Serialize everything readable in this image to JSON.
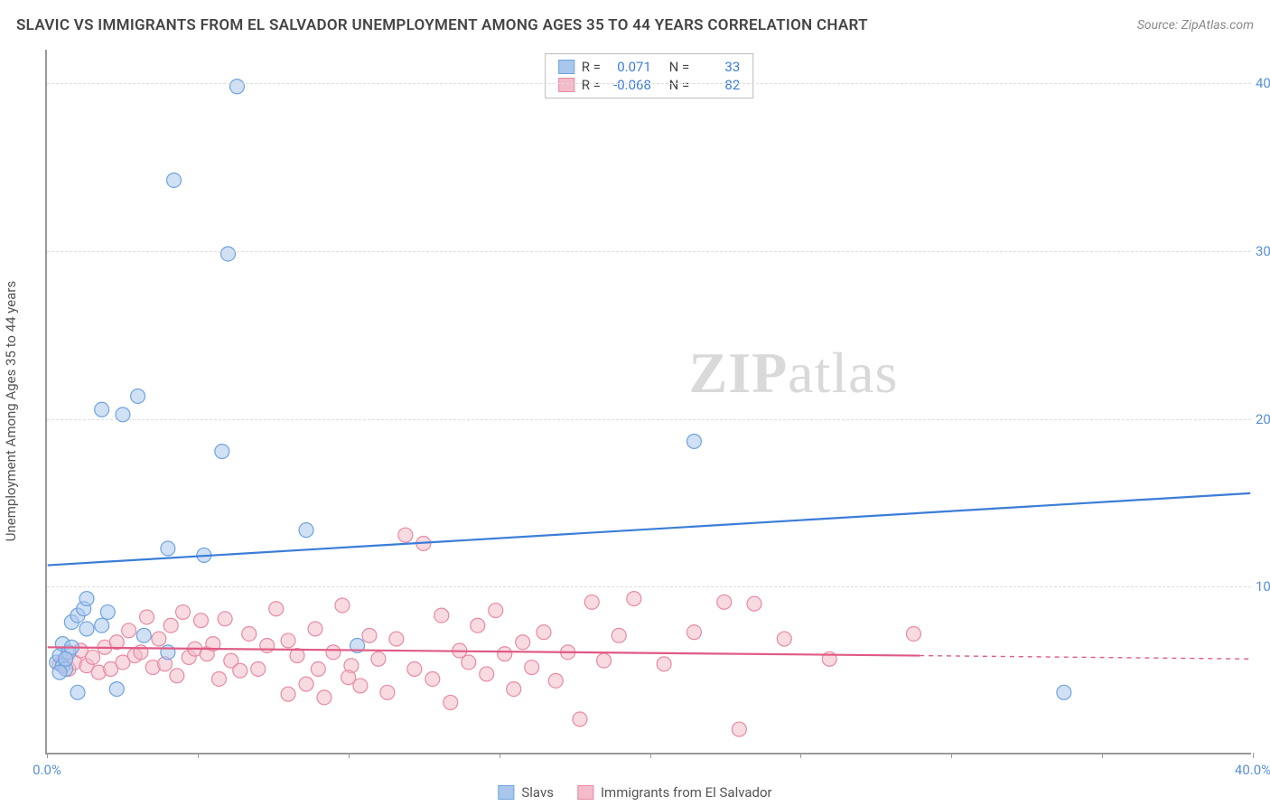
{
  "title": "SLAVIC VS IMMIGRANTS FROM EL SALVADOR UNEMPLOYMENT AMONG AGES 35 TO 44 YEARS CORRELATION CHART",
  "source": "Source: ZipAtlas.com",
  "y_axis_label": "Unemployment Among Ages 35 to 44 years",
  "watermark_bold": "ZIP",
  "watermark_rest": "atlas",
  "chart": {
    "type": "scatter",
    "xlim": [
      0,
      40
    ],
    "ylim": [
      0,
      42
    ],
    "x_ticks": [
      0,
      5,
      10,
      15,
      20,
      25,
      30,
      35,
      40
    ],
    "x_tick_labels": {
      "0": "0.0%",
      "40": "40.0%"
    },
    "y_ticks": [
      10,
      20,
      30,
      40
    ],
    "y_tick_labels": [
      "10.0%",
      "20.0%",
      "30.0%",
      "40.0%"
    ],
    "grid_color": "#dddddd",
    "axis_color": "#999999",
    "background_color": "#ffffff",
    "tick_label_color": "#5b8fd6",
    "marker_radius": 8,
    "marker_opacity": 0.55,
    "series": [
      {
        "name": "Slavs",
        "color_fill": "#a9c7ec",
        "color_stroke": "#6fa3dd",
        "R": "0.071",
        "N": "33",
        "trend": {
          "x1": 0,
          "y1": 11.2,
          "x2": 40,
          "y2": 15.5,
          "color": "#3b7dd8",
          "width": 2.2
        },
        "points": [
          [
            0.3,
            5.4
          ],
          [
            0.4,
            5.8
          ],
          [
            0.5,
            5.2
          ],
          [
            0.5,
            6.5
          ],
          [
            0.6,
            5.0
          ],
          [
            0.7,
            6.0
          ],
          [
            0.8,
            6.3
          ],
          [
            0.8,
            7.8
          ],
          [
            1.0,
            8.2
          ],
          [
            1.2,
            8.6
          ],
          [
            1.3,
            7.4
          ],
          [
            1.3,
            9.2
          ],
          [
            1.8,
            7.6
          ],
          [
            2.0,
            8.4
          ],
          [
            1.0,
            3.6
          ],
          [
            2.3,
            3.8
          ],
          [
            3.2,
            7.0
          ],
          [
            4.0,
            6.0
          ],
          [
            4.0,
            12.2
          ],
          [
            5.2,
            11.8
          ],
          [
            5.8,
            18.0
          ],
          [
            1.8,
            20.5
          ],
          [
            3.0,
            21.3
          ],
          [
            2.5,
            20.2
          ],
          [
            6.0,
            29.8
          ],
          [
            4.2,
            34.2
          ],
          [
            6.3,
            39.8
          ],
          [
            8.6,
            13.3
          ],
          [
            10.3,
            6.4
          ],
          [
            21.5,
            18.6
          ],
          [
            33.8,
            3.6
          ],
          [
            0.4,
            4.8
          ],
          [
            0.6,
            5.6
          ]
        ]
      },
      {
        "name": "Immigrants from El Salvador",
        "color_fill": "#f3bcc8",
        "color_stroke": "#e78aa2",
        "R": "-0.068",
        "N": "82",
        "trend": {
          "x1": 0,
          "y1": 6.3,
          "x2": 29,
          "y2": 5.8,
          "color": "#e05a84",
          "width": 2.2,
          "dash_after_x": 29,
          "x2_dash": 40,
          "y2_dash": 5.6
        },
        "points": [
          [
            0.4,
            5.3
          ],
          [
            0.6,
            5.6
          ],
          [
            0.7,
            5.0
          ],
          [
            0.9,
            5.4
          ],
          [
            1.1,
            6.1
          ],
          [
            1.3,
            5.2
          ],
          [
            1.5,
            5.7
          ],
          [
            1.7,
            4.8
          ],
          [
            1.9,
            6.3
          ],
          [
            2.1,
            5.0
          ],
          [
            2.3,
            6.6
          ],
          [
            2.5,
            5.4
          ],
          [
            2.7,
            7.3
          ],
          [
            2.9,
            5.8
          ],
          [
            3.1,
            6.0
          ],
          [
            3.3,
            8.1
          ],
          [
            3.5,
            5.1
          ],
          [
            3.7,
            6.8
          ],
          [
            3.9,
            5.3
          ],
          [
            4.1,
            7.6
          ],
          [
            4.3,
            4.6
          ],
          [
            4.5,
            8.4
          ],
          [
            4.7,
            5.7
          ],
          [
            4.9,
            6.2
          ],
          [
            5.1,
            7.9
          ],
          [
            5.3,
            5.9
          ],
          [
            5.5,
            6.5
          ],
          [
            5.7,
            4.4
          ],
          [
            5.9,
            8.0
          ],
          [
            6.1,
            5.5
          ],
          [
            6.7,
            7.1
          ],
          [
            7.0,
            5.0
          ],
          [
            7.3,
            6.4
          ],
          [
            7.6,
            8.6
          ],
          [
            8.0,
            3.5
          ],
          [
            8.3,
            5.8
          ],
          [
            8.6,
            4.1
          ],
          [
            8.9,
            7.4
          ],
          [
            9.2,
            3.3
          ],
          [
            9.5,
            6.0
          ],
          [
            9.8,
            8.8
          ],
          [
            10.1,
            5.2
          ],
          [
            10.4,
            4.0
          ],
          [
            10.7,
            7.0
          ],
          [
            11.0,
            5.6
          ],
          [
            11.3,
            3.6
          ],
          [
            11.6,
            6.8
          ],
          [
            11.9,
            13.0
          ],
          [
            12.2,
            5.0
          ],
          [
            12.5,
            12.5
          ],
          [
            12.8,
            4.4
          ],
          [
            13.1,
            8.2
          ],
          [
            13.4,
            3.0
          ],
          [
            13.7,
            6.1
          ],
          [
            14.0,
            5.4
          ],
          [
            14.3,
            7.6
          ],
          [
            14.6,
            4.7
          ],
          [
            14.9,
            8.5
          ],
          [
            15.2,
            5.9
          ],
          [
            15.5,
            3.8
          ],
          [
            15.8,
            6.6
          ],
          [
            16.1,
            5.1
          ],
          [
            16.5,
            7.2
          ],
          [
            16.9,
            4.3
          ],
          [
            17.3,
            6.0
          ],
          [
            17.7,
            2.0
          ],
          [
            18.1,
            9.0
          ],
          [
            18.5,
            5.5
          ],
          [
            19.0,
            7.0
          ],
          [
            19.5,
            9.2
          ],
          [
            20.5,
            5.3
          ],
          [
            21.5,
            7.2
          ],
          [
            22.5,
            9.0
          ],
          [
            23.0,
            1.4
          ],
          [
            23.5,
            8.9
          ],
          [
            24.5,
            6.8
          ],
          [
            26.0,
            5.6
          ],
          [
            28.8,
            7.1
          ],
          [
            6.4,
            4.9
          ],
          [
            8.0,
            6.7
          ],
          [
            9.0,
            5.0
          ],
          [
            10.0,
            4.5
          ]
        ]
      }
    ]
  },
  "stats_box": {
    "r_label": "R =",
    "n_label": "N ="
  },
  "legend": {
    "label1": "Slavs",
    "label2": "Immigrants from El Salvador"
  }
}
